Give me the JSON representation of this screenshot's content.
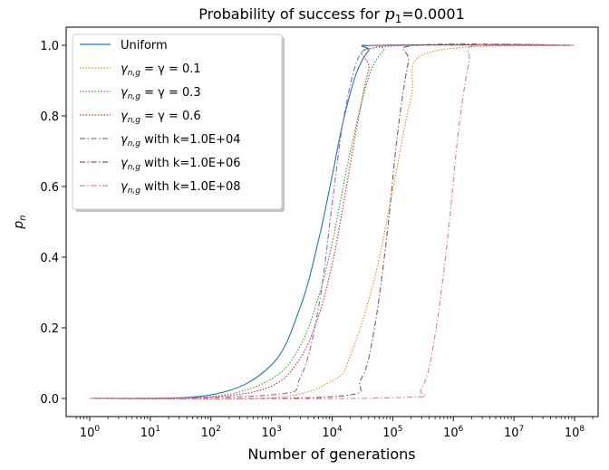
{
  "chart_data": {
    "type": "line",
    "title_prefix": "Probability of success for ",
    "title_math": "p",
    "title_sub": "1",
    "title_suffix": "=0.0001",
    "xlabel": "Number of generations",
    "ylabel_base": "p",
    "ylabel_sub": "n",
    "xscale": "log",
    "xlim": [
      1,
      100000000
    ],
    "ylim": [
      0.0,
      1.0
    ],
    "x_ticks": [
      {
        "base": "10",
        "exp": "0"
      },
      {
        "base": "10",
        "exp": "1"
      },
      {
        "base": "10",
        "exp": "2"
      },
      {
        "base": "10",
        "exp": "3"
      },
      {
        "base": "10",
        "exp": "4"
      },
      {
        "base": "10",
        "exp": "5"
      },
      {
        "base": "10",
        "exp": "6"
      },
      {
        "base": "10",
        "exp": "7"
      },
      {
        "base": "10",
        "exp": "8"
      }
    ],
    "y_ticks": [
      "0.0",
      "0.2",
      "0.4",
      "0.6",
      "0.8",
      "1.0"
    ],
    "grid": false,
    "legend_position": "upper-left",
    "series": [
      {
        "name": "Uniform",
        "color": "#1f77b4",
        "dash": "solid",
        "x": [
          1,
          100,
          1000,
          3000,
          6000,
          10000,
          15000,
          25000,
          40000,
          60000,
          100000000
        ],
        "y": [
          0.0,
          0.01,
          0.095,
          0.26,
          0.45,
          0.63,
          0.78,
          0.92,
          0.985,
          1.0,
          1.0
        ]
      },
      {
        "name": "γ_{n,g} = γ = 0.1",
        "color": "#ff7f0e",
        "dash": "dotted",
        "x": [
          1,
          1000,
          10000,
          20000,
          50000,
          100000,
          200000,
          400000,
          100000000
        ],
        "y": [
          0.0,
          0.002,
          0.05,
          0.12,
          0.34,
          0.59,
          0.85,
          0.98,
          1.0
        ]
      },
      {
        "name": "γ_{n,g} = γ = 0.3",
        "color": "#2ca02c",
        "dash": "dotted",
        "x": [
          1,
          100,
          1000,
          3000,
          6000,
          10000,
          20000,
          40000,
          70000,
          100000,
          100000000
        ],
        "y": [
          0.0,
          0.005,
          0.055,
          0.15,
          0.29,
          0.44,
          0.7,
          0.91,
          0.985,
          1.0,
          1.0
        ]
      },
      {
        "name": "γ_{n,g} = γ = 0.6",
        "color": "#d62728",
        "dash": "dotted",
        "x": [
          1,
          100,
          1000,
          3000,
          6000,
          10000,
          15000,
          25000,
          40000,
          60000,
          100000000
        ],
        "y": [
          0.0,
          0.004,
          0.035,
          0.115,
          0.235,
          0.38,
          0.54,
          0.76,
          0.93,
          0.995,
          1.0
        ]
      },
      {
        "name": "γ_{n,g} with k=1.0E+04",
        "color": "#9467bd",
        "dash": "dashdot",
        "x": [
          1,
          1000,
          3000,
          6000,
          10000,
          15000,
          25000,
          40000,
          60000,
          100000000
        ],
        "y": [
          0.0,
          0.01,
          0.06,
          0.26,
          0.55,
          0.78,
          0.95,
          0.995,
          1.0,
          1.0
        ]
      },
      {
        "name": "γ_{n,g} with k=1.0E+06",
        "color": "#8c564b",
        "dash": "dashdot",
        "x": [
          1,
          10000,
          30000,
          50000,
          80000,
          120000,
          180000,
          250000,
          100000000
        ],
        "y": [
          0.0,
          0.005,
          0.055,
          0.2,
          0.46,
          0.75,
          0.95,
          1.0,
          1.0
        ]
      },
      {
        "name": "γ_{n,g} with k=1.0E+08",
        "color": "#e377c2",
        "dash": "dashdot",
        "x": [
          1,
          100000,
          300000,
          500000,
          800000,
          1200000,
          1800000,
          2500000,
          100000000
        ],
        "y": [
          0.0,
          0.002,
          0.03,
          0.18,
          0.45,
          0.75,
          0.95,
          1.0,
          1.0
        ]
      }
    ]
  }
}
